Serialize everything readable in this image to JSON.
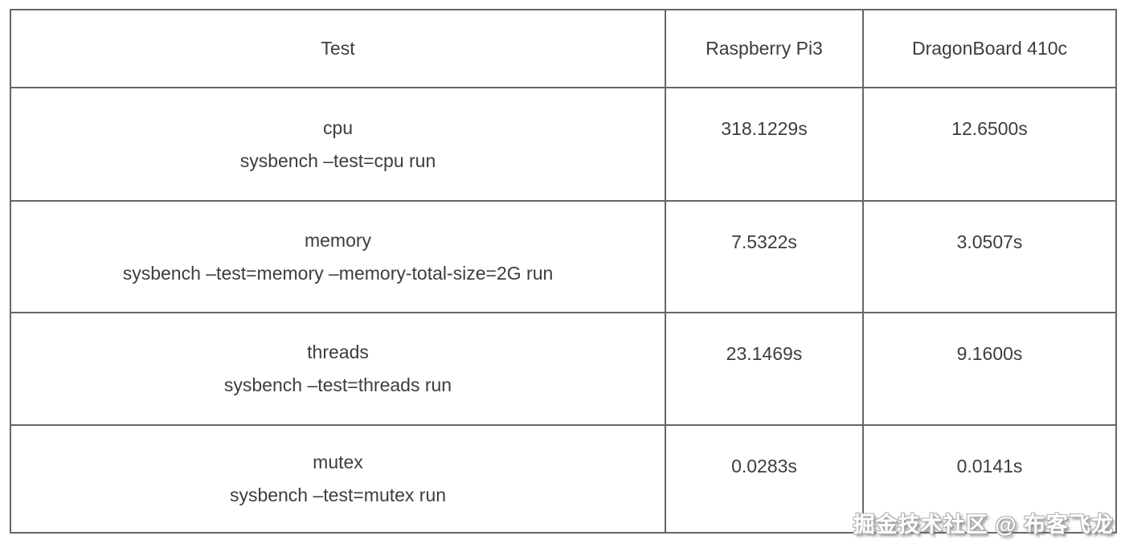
{
  "table": {
    "columns": [
      "Test",
      "Raspberry Pi3",
      "DragonBoard 410c"
    ],
    "rows": [
      {
        "name": "cpu",
        "command": "sysbench –test=cpu run",
        "raspberry_pi3": "318.1229s",
        "dragonboard_410c": "12.6500s"
      },
      {
        "name": "memory",
        "command": "sysbench –test=memory –memory-total-size=2G run",
        "raspberry_pi3": "7.5322s",
        "dragonboard_410c": "3.0507s"
      },
      {
        "name": "threads",
        "command": "sysbench –test=threads run",
        "raspberry_pi3": "23.1469s",
        "dragonboard_410c": "9.1600s"
      },
      {
        "name": "mutex",
        "command": "sysbench –test=mutex run",
        "raspberry_pi3": "0.0283s",
        "dragonboard_410c": "0.0141s"
      }
    ]
  },
  "watermark": {
    "text": "掘金技术社区 @ 布客飞龙"
  },
  "colors": {
    "border": "#666666",
    "text": "#3d3d3d",
    "background": "#ffffff",
    "watermark_outline": "#a0a0a0"
  },
  "chart_data": {
    "type": "table",
    "columns": [
      "Test",
      "Raspberry Pi3",
      "DragonBoard 410c"
    ],
    "categories": [
      "cpu",
      "memory",
      "threads",
      "mutex"
    ],
    "series": [
      {
        "name": "Raspberry Pi3",
        "values": [
          318.1229,
          7.5322,
          23.1469,
          0.0283
        ],
        "unit": "s"
      },
      {
        "name": "DragonBoard 410c",
        "values": [
          12.65,
          3.0507,
          9.16,
          0.0141
        ],
        "unit": "s"
      }
    ]
  }
}
